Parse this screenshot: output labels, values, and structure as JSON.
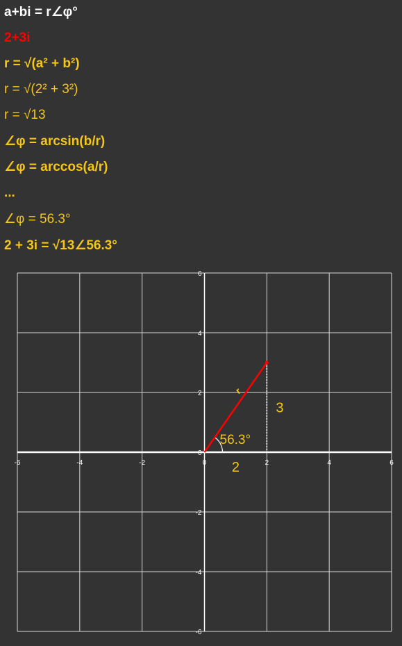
{
  "colors": {
    "background": "#333333",
    "white": "#ffffff",
    "red": "#ff0000",
    "yellow": "#f5c518"
  },
  "derivation": {
    "line1": "a+bi = r∠φ°",
    "line2": "2+3i",
    "line3": "r = √(a² + b²)",
    "line4": "r = √(2² + 3²)",
    "line5": "r = √13",
    "line6": "∠φ = arcsin(b/r)",
    "line7": "∠φ = arccos(a/r)",
    "line8": "...",
    "line9": "∠φ = 56.3°",
    "line10": "2 + 3i = √13∠56.3°"
  },
  "chart_data": {
    "type": "scatter",
    "xlim": [
      -6,
      6
    ],
    "ylim": [
      -6,
      6
    ],
    "grid": true,
    "x_ticks": [
      -6,
      -4,
      -2,
      0,
      2,
      4,
      6
    ],
    "y_ticks": [
      6,
      4,
      2,
      0,
      -2,
      -4,
      -6
    ],
    "grid_step": 2,
    "vector": {
      "from": [
        0,
        0
      ],
      "to": [
        2,
        3
      ],
      "color": "#ff0000"
    },
    "annotations": {
      "r_label": "r",
      "angle": "56.3°",
      "real_part": "2",
      "imag_part": "3"
    }
  }
}
